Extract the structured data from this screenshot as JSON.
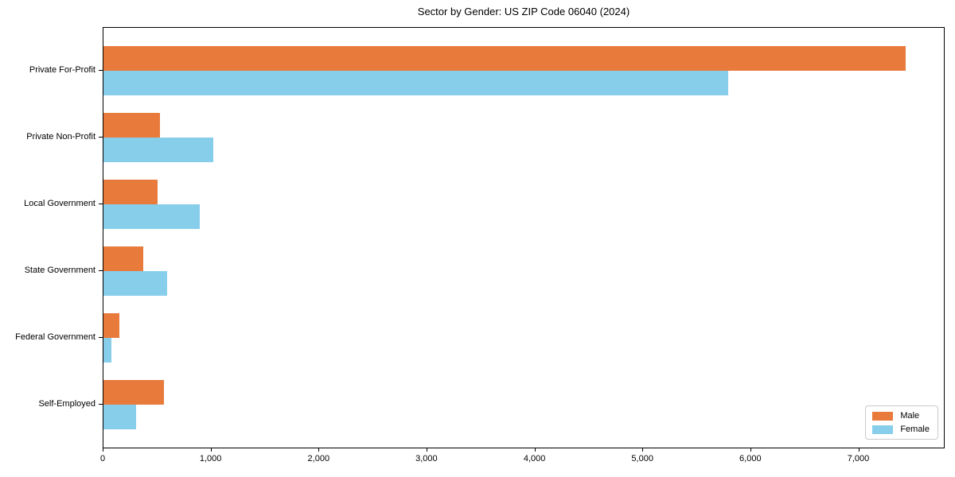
{
  "chart_data": {
    "type": "bar",
    "orientation": "horizontal",
    "title": "Sector by Gender: US ZIP Code 06040 (2024)",
    "categories": [
      "Private For-Profit",
      "Private Non-Profit",
      "Local Government",
      "State Government",
      "Federal Government",
      "Self-Employed"
    ],
    "series": [
      {
        "name": "Male",
        "color": "#e87a3c",
        "values": [
          7430,
          520,
          500,
          370,
          150,
          560
        ]
      },
      {
        "name": "Female",
        "color": "#87ceeb",
        "values": [
          5790,
          1020,
          890,
          590,
          75,
          300
        ]
      }
    ],
    "xlabel": "",
    "ylabel": "",
    "xlim": [
      0,
      7800
    ],
    "x_ticks": [
      0,
      1000,
      2000,
      3000,
      4000,
      5000,
      6000,
      7000
    ],
    "x_tick_labels": [
      "0",
      "1,000",
      "2,000",
      "3,000",
      "4,000",
      "5,000",
      "6,000",
      "7,000"
    ],
    "grid": false,
    "legend_position": "lower right"
  },
  "colors": {
    "frame": "#000000",
    "text": "#000000",
    "background": "#ffffff",
    "legend_border": "#c9c9c9"
  }
}
